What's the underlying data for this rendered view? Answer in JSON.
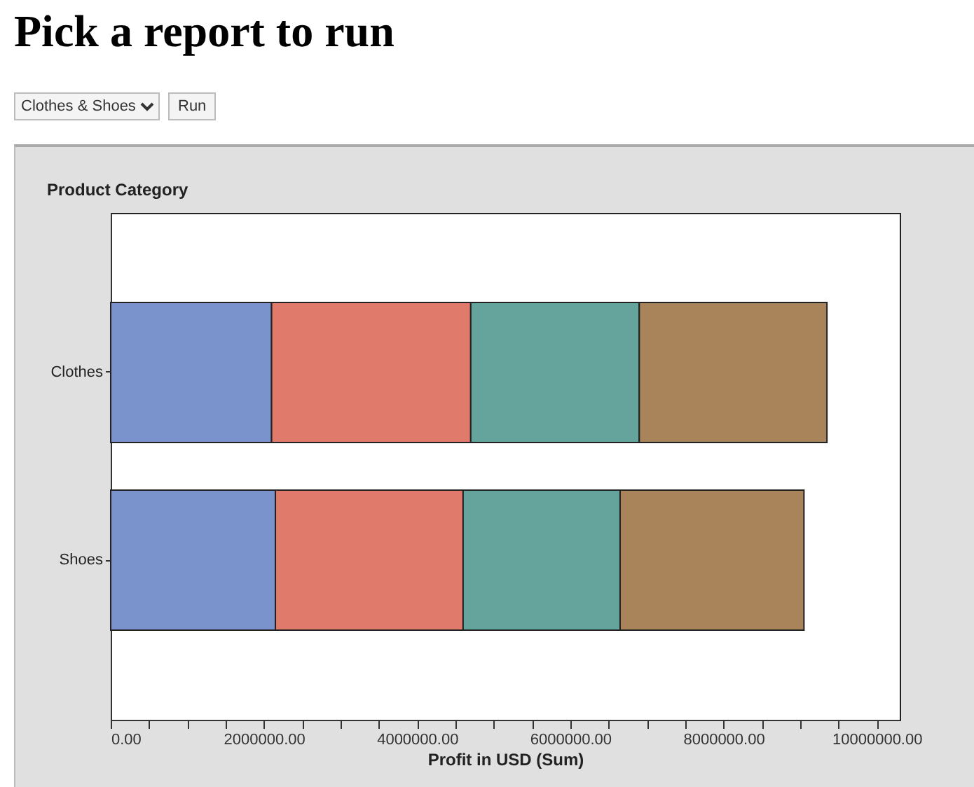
{
  "chart_data": {
    "type": "bar",
    "orientation": "horizontal",
    "stacked": true,
    "title": "Pick a report to run",
    "annotations": [
      "Clothes & Shoes",
      "Run"
    ],
    "ylabel": "Product Category",
    "xlabel": "Profit in USD (Sum)",
    "categories": [
      "Clothes",
      "Shoes"
    ],
    "series": [
      {
        "color": "#7b93cd",
        "values": [
          2100000,
          2150000
        ]
      },
      {
        "color": "#e07b6c",
        "values": [
          2600000,
          2450000
        ]
      },
      {
        "color": "#64a49c",
        "values": [
          2200000,
          2050000
        ]
      },
      {
        "color": "#a9845a",
        "values": [
          2450000,
          2400000
        ]
      }
    ],
    "xlim": [
      0,
      10300000
    ],
    "xticks": [
      {
        "value": 0,
        "label": "0.00"
      },
      {
        "value": 500000,
        "label": null
      },
      {
        "value": 1000000,
        "label": null
      },
      {
        "value": 1500000,
        "label": null
      },
      {
        "value": 2000000,
        "label": "2000000.00"
      },
      {
        "value": 2500000,
        "label": null
      },
      {
        "value": 3000000,
        "label": null
      },
      {
        "value": 3500000,
        "label": null
      },
      {
        "value": 4000000,
        "label": "4000000.00"
      },
      {
        "value": 4500000,
        "label": null
      },
      {
        "value": 5000000,
        "label": null
      },
      {
        "value": 5500000,
        "label": null
      },
      {
        "value": 6000000,
        "label": "6000000.00"
      },
      {
        "value": 6500000,
        "label": null
      },
      {
        "value": 7000000,
        "label": null
      },
      {
        "value": 7500000,
        "label": null
      },
      {
        "value": 8000000,
        "label": "8000000.00"
      },
      {
        "value": 8500000,
        "label": null
      },
      {
        "value": 9000000,
        "label": null
      },
      {
        "value": 9500000,
        "label": null
      },
      {
        "value": 10000000,
        "label": "10000000.00"
      }
    ],
    "grid": false,
    "legend": false
  }
}
